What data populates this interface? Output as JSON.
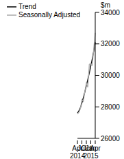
{
  "chart_data": {
    "type": "line",
    "y_label": "$m",
    "categories": [
      "Apr 2014",
      null,
      null,
      "Jul",
      null,
      null,
      "Oct",
      null,
      null,
      "Jan 2015",
      null,
      null,
      "Apr"
    ],
    "series": [
      {
        "name": "Trend",
        "color": "#000000",
        "values": [
          27600,
          27750,
          27950,
          28250,
          28600,
          28950,
          29350,
          29750,
          30150,
          30600,
          31050,
          31550,
          32100
        ]
      },
      {
        "name": "Seasonally Adjusted",
        "color": "#aaaaaa",
        "values": [
          27550,
          27650,
          27900,
          28450,
          28350,
          29000,
          29500,
          29250,
          30700,
          30750,
          30650,
          31700,
          32700
        ]
      }
    ],
    "ylim": [
      26000,
      34000
    ],
    "yticks": [
      26000,
      28000,
      30000,
      32000,
      34000
    ],
    "grid": false,
    "legend": "upper left"
  }
}
